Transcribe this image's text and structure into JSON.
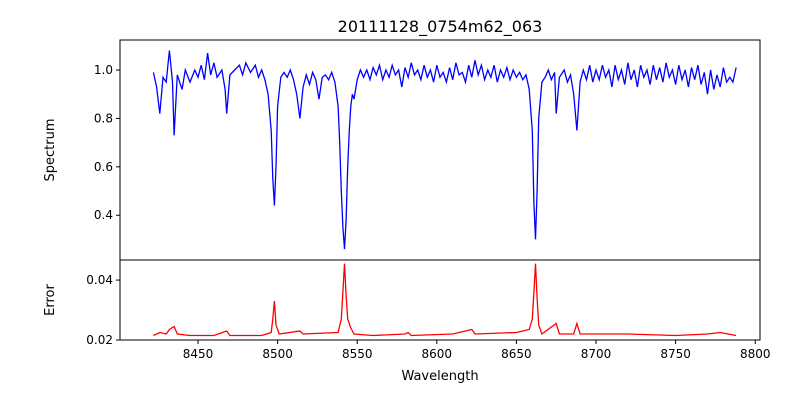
{
  "chart_data": [
    {
      "type": "line",
      "title": "20111128_0754m62_063",
      "xlabel": "",
      "ylabel": "Spectrum",
      "xlim": [
        8401,
        8803
      ],
      "ylim": [
        0.215,
        1.124
      ],
      "yticks": [
        0.4,
        0.6,
        0.8,
        1.0
      ],
      "ytick_labels": [
        "0.4",
        "0.6",
        "0.8",
        "1.0"
      ],
      "grid": false,
      "color": "#0000ff",
      "points": [
        [
          8422,
          0.99
        ],
        [
          8424,
          0.93
        ],
        [
          8426,
          0.82
        ],
        [
          8428,
          0.97
        ],
        [
          8430,
          0.95
        ],
        [
          8432,
          1.08
        ],
        [
          8434,
          0.95
        ],
        [
          8435,
          0.73
        ],
        [
          8437,
          0.98
        ],
        [
          8440,
          0.92
        ],
        [
          8442,
          1.0
        ],
        [
          8445,
          0.95
        ],
        [
          8448,
          1.0
        ],
        [
          8450,
          0.97
        ],
        [
          8452,
          1.02
        ],
        [
          8454,
          0.96
        ],
        [
          8456,
          1.07
        ],
        [
          8458,
          0.98
        ],
        [
          8460,
          1.03
        ],
        [
          8462,
          0.97
        ],
        [
          8465,
          1.0
        ],
        [
          8467,
          0.92
        ],
        [
          8468,
          0.82
        ],
        [
          8470,
          0.98
        ],
        [
          8473,
          1.0
        ],
        [
          8476,
          1.02
        ],
        [
          8478,
          0.98
        ],
        [
          8480,
          1.03
        ],
        [
          8483,
          0.99
        ],
        [
          8486,
          1.02
        ],
        [
          8488,
          0.97
        ],
        [
          8490,
          1.0
        ],
        [
          8492,
          0.96
        ],
        [
          8494,
          0.9
        ],
        [
          8496,
          0.75
        ],
        [
          8497,
          0.55
        ],
        [
          8498,
          0.44
        ],
        [
          8499,
          0.6
        ],
        [
          8500,
          0.85
        ],
        [
          8502,
          0.97
        ],
        [
          8504,
          0.99
        ],
        [
          8506,
          0.97
        ],
        [
          8508,
          1.0
        ],
        [
          8510,
          0.96
        ],
        [
          8512,
          0.9
        ],
        [
          8514,
          0.8
        ],
        [
          8516,
          0.93
        ],
        [
          8518,
          0.98
        ],
        [
          8520,
          0.94
        ],
        [
          8522,
          0.99
        ],
        [
          8524,
          0.96
        ],
        [
          8526,
          0.88
        ],
        [
          8528,
          0.97
        ],
        [
          8530,
          0.98
        ],
        [
          8532,
          0.96
        ],
        [
          8534,
          0.99
        ],
        [
          8536,
          0.95
        ],
        [
          8538,
          0.85
        ],
        [
          8539,
          0.7
        ],
        [
          8540,
          0.5
        ],
        [
          8541,
          0.35
        ],
        [
          8542,
          0.26
        ],
        [
          8543,
          0.38
        ],
        [
          8544,
          0.6
        ],
        [
          8545,
          0.75
        ],
        [
          8546,
          0.85
        ],
        [
          8547,
          0.9
        ],
        [
          8548,
          0.88
        ],
        [
          8550,
          0.96
        ],
        [
          8552,
          1.0
        ],
        [
          8554,
          0.97
        ],
        [
          8556,
          1.0
        ],
        [
          8558,
          0.96
        ],
        [
          8560,
          1.01
        ],
        [
          8562,
          0.98
        ],
        [
          8564,
          1.02
        ],
        [
          8566,
          0.96
        ],
        [
          8568,
          1.0
        ],
        [
          8570,
          0.97
        ],
        [
          8572,
          1.02
        ],
        [
          8574,
          0.98
        ],
        [
          8576,
          1.0
        ],
        [
          8578,
          0.93
        ],
        [
          8580,
          1.01
        ],
        [
          8582,
          0.97
        ],
        [
          8584,
          1.03
        ],
        [
          8586,
          0.98
        ],
        [
          8588,
          1.0
        ],
        [
          8590,
          0.96
        ],
        [
          8592,
          1.02
        ],
        [
          8594,
          0.97
        ],
        [
          8596,
          1.0
        ],
        [
          8598,
          0.95
        ],
        [
          8600,
          1.02
        ],
        [
          8602,
          0.97
        ],
        [
          8604,
          0.99
        ],
        [
          8606,
          0.95
        ],
        [
          8608,
          1.01
        ],
        [
          8610,
          0.96
        ],
        [
          8612,
          1.03
        ],
        [
          8614,
          0.98
        ],
        [
          8616,
          0.99
        ],
        [
          8618,
          0.95
        ],
        [
          8620,
          1.02
        ],
        [
          8622,
          0.97
        ],
        [
          8624,
          1.04
        ],
        [
          8626,
          0.98
        ],
        [
          8628,
          1.02
        ],
        [
          8630,
          0.96
        ],
        [
          8632,
          1.0
        ],
        [
          8634,
          0.97
        ],
        [
          8636,
          1.02
        ],
        [
          8638,
          0.95
        ],
        [
          8640,
          1.0
        ],
        [
          8642,
          0.97
        ],
        [
          8644,
          1.01
        ],
        [
          8646,
          0.96
        ],
        [
          8648,
          1.0
        ],
        [
          8650,
          0.97
        ],
        [
          8652,
          0.99
        ],
        [
          8654,
          0.96
        ],
        [
          8656,
          0.98
        ],
        [
          8658,
          0.92
        ],
        [
          8660,
          0.75
        ],
        [
          8661,
          0.45
        ],
        [
          8662,
          0.3
        ],
        [
          8663,
          0.5
        ],
        [
          8664,
          0.8
        ],
        [
          8666,
          0.95
        ],
        [
          8668,
          0.97
        ],
        [
          8670,
          1.0
        ],
        [
          8672,
          0.96
        ],
        [
          8674,
          0.99
        ],
        [
          8675,
          0.82
        ],
        [
          8677,
          0.97
        ],
        [
          8680,
          1.0
        ],
        [
          8682,
          0.95
        ],
        [
          8684,
          0.98
        ],
        [
          8686,
          0.9
        ],
        [
          8688,
          0.75
        ],
        [
          8690,
          0.95
        ],
        [
          8692,
          1.0
        ],
        [
          8694,
          0.96
        ],
        [
          8696,
          1.02
        ],
        [
          8698,
          0.95
        ],
        [
          8700,
          1.0
        ],
        [
          8702,
          0.96
        ],
        [
          8704,
          1.02
        ],
        [
          8706,
          0.97
        ],
        [
          8708,
          1.0
        ],
        [
          8710,
          0.93
        ],
        [
          8712,
          1.02
        ],
        [
          8714,
          0.96
        ],
        [
          8716,
          1.0
        ],
        [
          8718,
          0.94
        ],
        [
          8720,
          1.03
        ],
        [
          8722,
          0.96
        ],
        [
          8724,
          1.0
        ],
        [
          8726,
          0.93
        ],
        [
          8728,
          1.02
        ],
        [
          8730,
          0.97
        ],
        [
          8732,
          1.0
        ],
        [
          8734,
          0.94
        ],
        [
          8736,
          1.02
        ],
        [
          8738,
          0.96
        ],
        [
          8740,
          1.01
        ],
        [
          8742,
          0.95
        ],
        [
          8744,
          1.03
        ],
        [
          8746,
          0.97
        ],
        [
          8748,
          1.0
        ],
        [
          8750,
          0.94
        ],
        [
          8752,
          1.02
        ],
        [
          8754,
          0.96
        ],
        [
          8756,
          1.0
        ],
        [
          8758,
          0.93
        ],
        [
          8760,
          1.01
        ],
        [
          8762,
          0.96
        ],
        [
          8764,
          1.02
        ],
        [
          8766,
          0.94
        ],
        [
          8768,
          0.99
        ],
        [
          8770,
          0.9
        ],
        [
          8772,
          1.0
        ],
        [
          8774,
          0.92
        ],
        [
          8776,
          0.98
        ],
        [
          8778,
          0.93
        ],
        [
          8780,
          1.01
        ],
        [
          8782,
          0.95
        ],
        [
          8784,
          0.97
        ],
        [
          8786,
          0.95
        ],
        [
          8788,
          1.01
        ]
      ]
    },
    {
      "type": "line",
      "title": "",
      "xlabel": "Wavelength",
      "ylabel": "Error",
      "xlim": [
        8401,
        8803
      ],
      "ylim": [
        0.02,
        0.0467
      ],
      "xticks": [
        8450,
        8500,
        8550,
        8600,
        8650,
        8700,
        8750,
        8800
      ],
      "xtick_labels": [
        "8450",
        "8500",
        "8550",
        "8600",
        "8650",
        "8700",
        "8750",
        "8800"
      ],
      "yticks": [
        0.02,
        0.04
      ],
      "ytick_labels": [
        "0.02",
        "0.04"
      ],
      "grid": false,
      "color": "#ff0000",
      "points": [
        [
          8422,
          0.0215
        ],
        [
          8426,
          0.0225
        ],
        [
          8430,
          0.022
        ],
        [
          8432,
          0.0235
        ],
        [
          8435,
          0.0245
        ],
        [
          8437,
          0.022
        ],
        [
          8445,
          0.0215
        ],
        [
          8460,
          0.0215
        ],
        [
          8468,
          0.023
        ],
        [
          8470,
          0.0215
        ],
        [
          8490,
          0.0215
        ],
        [
          8496,
          0.0225
        ],
        [
          8497,
          0.027
        ],
        [
          8498,
          0.033
        ],
        [
          8499,
          0.025
        ],
        [
          8501,
          0.022
        ],
        [
          8514,
          0.023
        ],
        [
          8516,
          0.022
        ],
        [
          8538,
          0.0225
        ],
        [
          8540,
          0.027
        ],
        [
          8541,
          0.036
        ],
        [
          8542,
          0.0455
        ],
        [
          8543,
          0.035
        ],
        [
          8544,
          0.027
        ],
        [
          8546,
          0.024
        ],
        [
          8548,
          0.022
        ],
        [
          8560,
          0.0215
        ],
        [
          8580,
          0.022
        ],
        [
          8582,
          0.0225
        ],
        [
          8584,
          0.0215
        ],
        [
          8610,
          0.022
        ],
        [
          8622,
          0.0235
        ],
        [
          8624,
          0.022
        ],
        [
          8650,
          0.0225
        ],
        [
          8658,
          0.0235
        ],
        [
          8660,
          0.027
        ],
        [
          8661,
          0.036
        ],
        [
          8662,
          0.0455
        ],
        [
          8663,
          0.034
        ],
        [
          8664,
          0.025
        ],
        [
          8666,
          0.022
        ],
        [
          8675,
          0.0255
        ],
        [
          8677,
          0.022
        ],
        [
          8686,
          0.022
        ],
        [
          8688,
          0.0255
        ],
        [
          8690,
          0.022
        ],
        [
          8720,
          0.022
        ],
        [
          8750,
          0.0215
        ],
        [
          8770,
          0.022
        ],
        [
          8778,
          0.0225
        ],
        [
          8788,
          0.0215
        ]
      ]
    }
  ]
}
